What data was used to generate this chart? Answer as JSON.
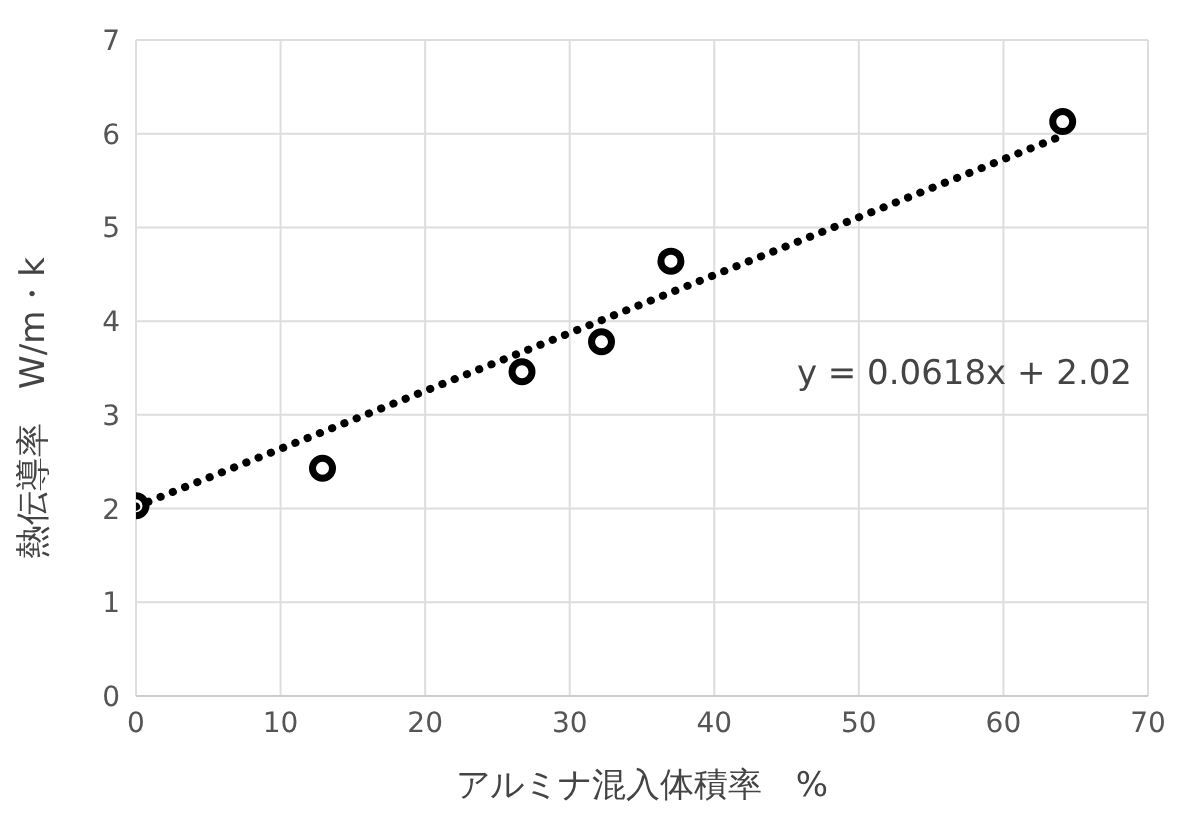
{
  "chart_data": {
    "type": "scatter",
    "xlabel": "アルミナ混入体積率　%",
    "ylabel": "熱伝導率　W/m・k",
    "xlim": [
      0,
      70
    ],
    "xticks": [
      0,
      10,
      20,
      30,
      40,
      50,
      60,
      70
    ],
    "ylim": [
      0,
      7
    ],
    "yticks": [
      0,
      1,
      2,
      3,
      4,
      5,
      6,
      7
    ],
    "grid": true,
    "legend": false,
    "series": [
      {
        "color": "#000000",
        "marker": "circle",
        "x": [
          0,
          12.9,
          26.7,
          32.2,
          37,
          64.1
        ],
        "values": [
          2.03,
          2.43,
          3.46,
          3.78,
          4.64,
          6.13
        ]
      },
      {
        "type": "line",
        "color": "#000000",
        "marker": "none",
        "line_style": "dotted",
        "x": [
          0,
          64.1
        ],
        "values": [
          2.02,
          5.98
        ]
      }
    ],
    "annotations": [
      "y = 0.0618x + 2.02"
    ]
  }
}
